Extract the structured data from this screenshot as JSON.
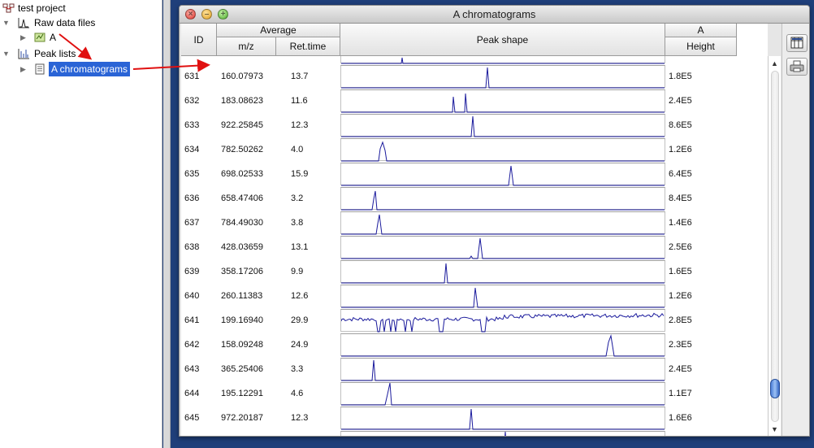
{
  "tree": {
    "root_label": "test project",
    "raw_files_label": "Raw data files",
    "raw_file_item": "A",
    "peak_lists_label": "Peak lists",
    "peak_list_item": "A chromatograms"
  },
  "window": {
    "title": "A chromatograms"
  },
  "table": {
    "col_id": "ID",
    "group_average": "Average",
    "col_mz": "m/z",
    "col_rt": "Ret.time",
    "col_peak_shape": "Peak shape",
    "group_sample": "A",
    "col_height": "Height",
    "rows": [
      {
        "id": "631",
        "mz": "160.07973",
        "rt": "13.7",
        "height": "1.8E5"
      },
      {
        "id": "632",
        "mz": "183.08623",
        "rt": "11.6",
        "height": "2.4E5"
      },
      {
        "id": "633",
        "mz": "922.25845",
        "rt": "12.3",
        "height": "8.6E5"
      },
      {
        "id": "634",
        "mz": "782.50262",
        "rt": "4.0",
        "height": "1.2E6"
      },
      {
        "id": "635",
        "mz": "698.02533",
        "rt": "15.9",
        "height": "6.4E5"
      },
      {
        "id": "636",
        "mz": "658.47406",
        "rt": "3.2",
        "height": "8.4E5"
      },
      {
        "id": "637",
        "mz": "784.49030",
        "rt": "3.8",
        "height": "1.4E6"
      },
      {
        "id": "638",
        "mz": "428.03659",
        "rt": "13.1",
        "height": "2.5E6"
      },
      {
        "id": "639",
        "mz": "358.17206",
        "rt": "9.9",
        "height": "1.6E5"
      },
      {
        "id": "640",
        "mz": "260.11383",
        "rt": "12.6",
        "height": "1.2E6"
      },
      {
        "id": "641",
        "mz": "199.16940",
        "rt": "29.9",
        "height": "2.8E5"
      },
      {
        "id": "642",
        "mz": "158.09248",
        "rt": "24.9",
        "height": "2.3E5"
      },
      {
        "id": "643",
        "mz": "365.25406",
        "rt": "3.3",
        "height": "2.4E5"
      },
      {
        "id": "644",
        "mz": "195.12291",
        "rt": "4.6",
        "height": "1.1E7"
      },
      {
        "id": "645",
        "mz": "972.20187",
        "rt": "12.3",
        "height": "1.6E6"
      }
    ]
  },
  "scroll": {
    "position_fraction": 0.93
  },
  "colors": {
    "selection": "#2a64d6",
    "peak_line": "#1a1a9c",
    "annotation_arrow": "#e01010",
    "close": "#e0443c",
    "minimize": "#e8b02c",
    "zoom": "#5cbf3a"
  },
  "icons": {
    "expand": "triangle-right",
    "collapse": "triangle-down",
    "toolbar_1": "table-settings-icon",
    "toolbar_2": "print-icon"
  }
}
